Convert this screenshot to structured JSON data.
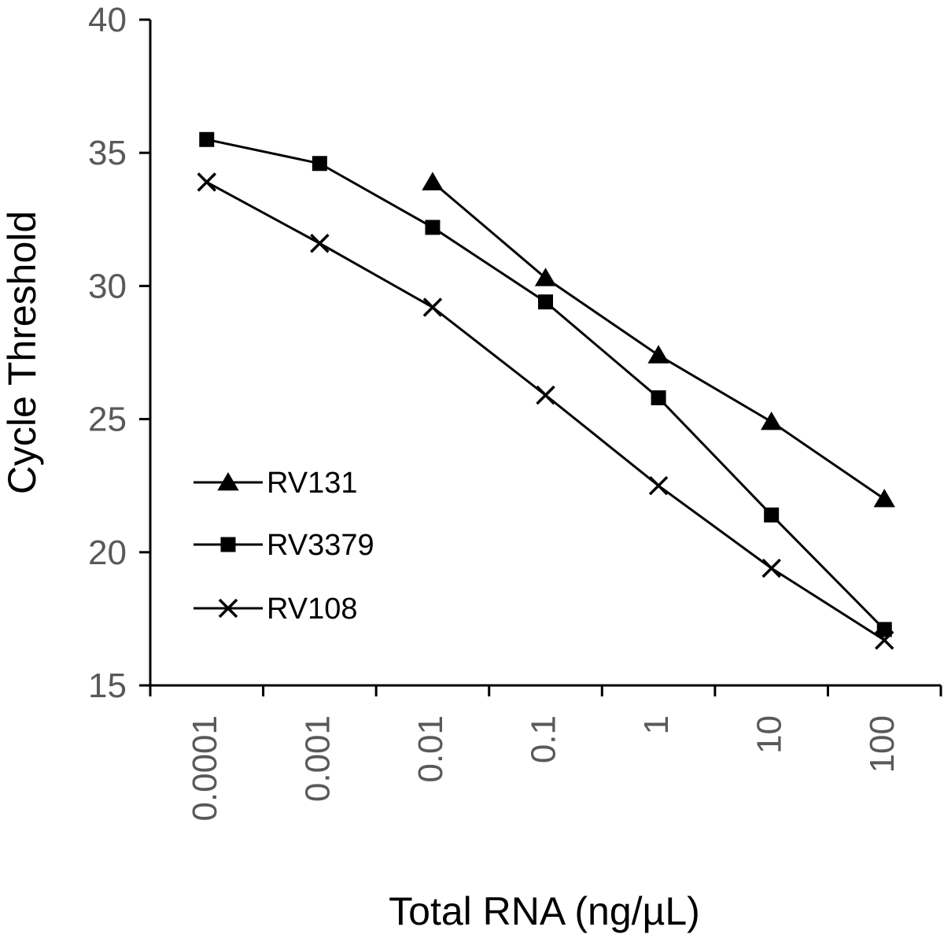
{
  "chart_data": {
    "type": "line",
    "title": "",
    "xlabel": "Total RNA (ng/µL)",
    "ylabel": "Cycle Threshold",
    "categories": [
      "0.0001",
      "0.001",
      "0.01",
      "0.1",
      "1",
      "10",
      "100"
    ],
    "ylim": [
      15,
      40
    ],
    "yticks": [
      "15",
      "20",
      "25",
      "30",
      "35",
      "40"
    ],
    "grid": false,
    "legend_position": "left-middle",
    "series": [
      {
        "name": "RV131",
        "marker": "triangle",
        "values": [
          null,
          null,
          33.9,
          30.3,
          27.4,
          24.9,
          22.0
        ]
      },
      {
        "name": "RV3379",
        "marker": "square",
        "values": [
          35.5,
          34.6,
          32.2,
          29.4,
          25.8,
          21.4,
          17.1
        ]
      },
      {
        "name": "RV108",
        "marker": "x",
        "values": [
          33.9,
          31.6,
          29.2,
          25.9,
          22.5,
          19.4,
          16.7
        ]
      }
    ]
  }
}
